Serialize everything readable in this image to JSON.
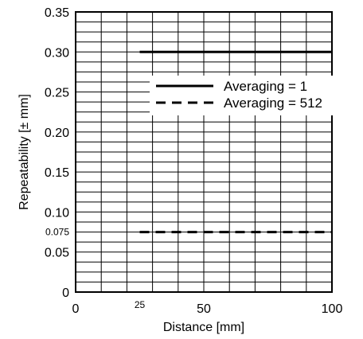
{
  "chart_data": {
    "type": "line",
    "title": "",
    "xlabel": "Distance [mm]",
    "ylabel": "Repeatability [± mm]",
    "xlim": [
      0,
      100
    ],
    "ylim": [
      0,
      0.35
    ],
    "grid": true,
    "legend_position": "upper-right",
    "x_ticks": [
      {
        "value": 0,
        "label": "0"
      },
      {
        "value": 25,
        "label": "25"
      },
      {
        "value": 50,
        "label": "50"
      },
      {
        "value": 100,
        "label": "100"
      }
    ],
    "y_ticks": [
      {
        "value": 0,
        "label": "0"
      },
      {
        "value": 0.05,
        "label": "0.05"
      },
      {
        "value": 0.075,
        "label": "0.075"
      },
      {
        "value": 0.1,
        "label": "0.10"
      },
      {
        "value": 0.15,
        "label": "0.15"
      },
      {
        "value": 0.2,
        "label": "0.20"
      },
      {
        "value": 0.25,
        "label": "0.25"
      },
      {
        "value": 0.3,
        "label": "0.30"
      },
      {
        "value": 0.35,
        "label": "0.35"
      }
    ],
    "series": [
      {
        "name": "Averaging = 1",
        "style": "solid",
        "x": [
          25,
          100
        ],
        "y": [
          0.3,
          0.3
        ]
      },
      {
        "name": "Averaging = 512",
        "style": "dashed",
        "x": [
          25,
          100
        ],
        "y": [
          0.075,
          0.075
        ]
      }
    ]
  }
}
